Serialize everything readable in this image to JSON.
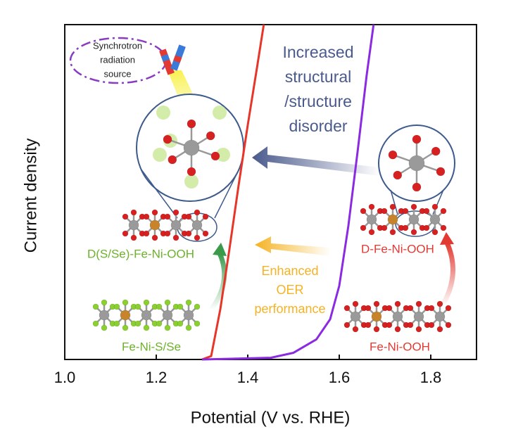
{
  "chart_data": {
    "type": "line",
    "xlabel": "Potential (V vs. RHE)",
    "ylabel": "Current density",
    "xlim": [
      1.0,
      1.9
    ],
    "ylim": [
      0,
      100
    ],
    "xticks": [
      {
        "value": 1.0,
        "label": "1.0"
      },
      {
        "value": 1.2,
        "label": "1.2"
      },
      {
        "value": 1.4,
        "label": "1.4"
      },
      {
        "value": 1.6,
        "label": "1.6"
      },
      {
        "value": 1.8,
        "label": "1.8"
      }
    ],
    "series": [
      {
        "color": "#e8352a",
        "x": [
          1.3,
          1.32,
          1.34,
          1.36,
          1.38,
          1.4,
          1.42,
          1.435
        ],
        "values": [
          0,
          1,
          15,
          33,
          52,
          70,
          87,
          100
        ]
      },
      {
        "color": "#8a2be2",
        "x": [
          1.3,
          1.45,
          1.5,
          1.55,
          1.58,
          1.6,
          1.62,
          1.64,
          1.66,
          1.675
        ],
        "values": [
          0,
          0.5,
          2,
          6,
          12,
          22,
          40,
          62,
          85,
          100
        ]
      }
    ],
    "annotations": [
      {
        "lines": [
          "Synchrotron",
          "radiation",
          "source"
        ],
        "color": "#222222"
      },
      {
        "lines": [
          "Increased",
          "structural",
          "/structure",
          "disorder"
        ],
        "color": "#4a5a8c"
      },
      {
        "lines": [
          "Enhanced",
          "OER",
          "performance"
        ],
        "color": "#f5b324"
      },
      {
        "lines": [
          "D(S/Se)-Fe-Ni-OOH"
        ],
        "color": "#6cb22a"
      },
      {
        "lines": [
          "D-Fe-Ni-OOH"
        ],
        "color": "#e23a32"
      },
      {
        "lines": [
          "Fe-Ni-S/Se"
        ],
        "color": "#6cb22a"
      },
      {
        "lines": [
          "Fe-Ni-OOH"
        ],
        "color": "#e23a32"
      }
    ]
  }
}
